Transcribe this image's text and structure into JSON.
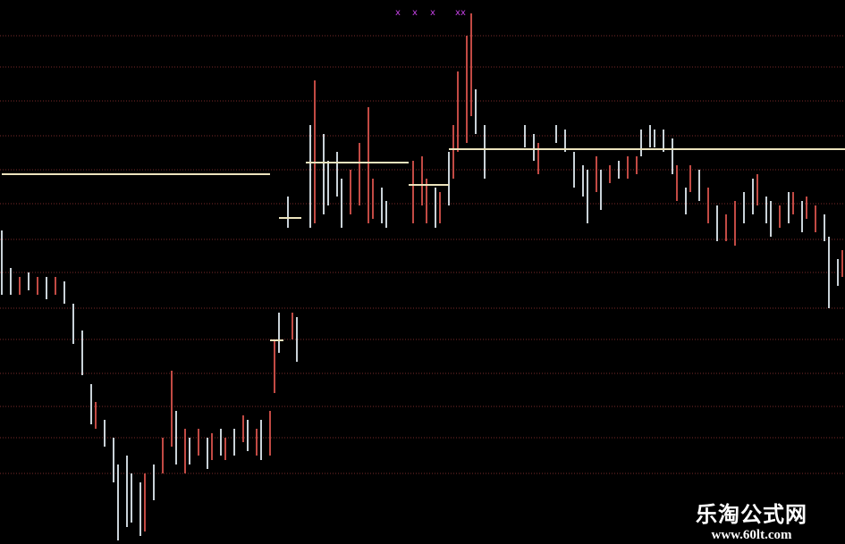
{
  "chart_data": {
    "type": "ohlc",
    "title": "",
    "xlabel": "",
    "ylabel": "",
    "xlim": [
      0,
      189
    ],
    "ylim": [
      0,
      61
    ],
    "grid": true,
    "colors": {
      "up": "#c24a44",
      "down": "#c9d2d8",
      "level": "#ece3bd",
      "grid": "#7a2a2a",
      "marker": "#c040e0",
      "background": "#000000"
    },
    "bars": [
      [
        0,
        35.2,
        28,
        "d"
      ],
      [
        2,
        31,
        28,
        "d"
      ],
      [
        4,
        30,
        28,
        "u"
      ],
      [
        6,
        30.5,
        28.5,
        "d"
      ],
      [
        8,
        30,
        28,
        "u"
      ],
      [
        10,
        30,
        27.5,
        "d"
      ],
      [
        12,
        30,
        28,
        "u"
      ],
      [
        14,
        29.5,
        27,
        "d"
      ],
      [
        16,
        27,
        22.5,
        "d"
      ],
      [
        18,
        24,
        19,
        "d"
      ],
      [
        20,
        18,
        13.5,
        "d"
      ],
      [
        21,
        16,
        13,
        "u"
      ],
      [
        23,
        14,
        11,
        "d"
      ],
      [
        25,
        12,
        7,
        "d"
      ],
      [
        26,
        9,
        0.5,
        "d"
      ],
      [
        28,
        10,
        2,
        "d"
      ],
      [
        29,
        8,
        2.5,
        "d"
      ],
      [
        31,
        7,
        1,
        "d"
      ],
      [
        32,
        8,
        1.5,
        "u"
      ],
      [
        34,
        9,
        5,
        "d"
      ],
      [
        36,
        12,
        8,
        "u"
      ],
      [
        38,
        19.5,
        11,
        "u"
      ],
      [
        39,
        15,
        9,
        "d"
      ],
      [
        41,
        13,
        8,
        "u"
      ],
      [
        42,
        12,
        9,
        "d"
      ],
      [
        44,
        13,
        10,
        "u"
      ],
      [
        46,
        12,
        8.5,
        "d"
      ],
      [
        47,
        12.5,
        9.5,
        "u"
      ],
      [
        49,
        13,
        10,
        "d"
      ],
      [
        50,
        12,
        9.5,
        "u"
      ],
      [
        52,
        13,
        10,
        "d"
      ],
      [
        54,
        14.5,
        11.5,
        "u"
      ],
      [
        55,
        14,
        10.5,
        "d"
      ],
      [
        57,
        13,
        10,
        "u"
      ],
      [
        58,
        14,
        9.5,
        "d"
      ],
      [
        60,
        15,
        10,
        "u"
      ],
      [
        61,
        23,
        17,
        "u"
      ],
      [
        62,
        26,
        21.5,
        "d"
      ],
      [
        64,
        39,
        35.5,
        "d"
      ],
      [
        65,
        26,
        23,
        "u"
      ],
      [
        66,
        25.5,
        20.5,
        "d"
      ],
      [
        69,
        47,
        35.5,
        "d"
      ],
      [
        70,
        52,
        36,
        "u"
      ],
      [
        72,
        46,
        37,
        "d"
      ],
      [
        73,
        43,
        38,
        "d"
      ],
      [
        75,
        44,
        39,
        "d"
      ],
      [
        76,
        41,
        35.5,
        "d"
      ],
      [
        78,
        42,
        37,
        "u"
      ],
      [
        80,
        45,
        38,
        "u"
      ],
      [
        82,
        49,
        36,
        "u"
      ],
      [
        83,
        41,
        36.5,
        "u"
      ],
      [
        85,
        40,
        36,
        "d"
      ],
      [
        86,
        38.5,
        35.5,
        "d"
      ],
      [
        92,
        43,
        36,
        "u"
      ],
      [
        94,
        43.5,
        38,
        "u"
      ],
      [
        95,
        41,
        36,
        "u"
      ],
      [
        97,
        40,
        35.5,
        "d"
      ],
      [
        98,
        39.5,
        36,
        "u"
      ],
      [
        100,
        44,
        38,
        "d"
      ],
      [
        101,
        47,
        41,
        "u"
      ],
      [
        102,
        53,
        44,
        "u"
      ],
      [
        104,
        57,
        45,
        "u"
      ],
      [
        105,
        59.5,
        48,
        "u"
      ],
      [
        106,
        51,
        46,
        "d"
      ],
      [
        108,
        47,
        41,
        "d"
      ],
      [
        117,
        47,
        44.5,
        "d"
      ],
      [
        119,
        46,
        43,
        "d"
      ],
      [
        120,
        45,
        41.5,
        "u"
      ],
      [
        124,
        47,
        45,
        "d"
      ],
      [
        126,
        46.5,
        44,
        "d"
      ],
      [
        128,
        44,
        40,
        "d"
      ],
      [
        130,
        42.5,
        39,
        "d"
      ],
      [
        131,
        42,
        36,
        "d"
      ],
      [
        133,
        43.5,
        39.5,
        "u"
      ],
      [
        134,
        42,
        37.5,
        "d"
      ],
      [
        136,
        42.5,
        40.5,
        "u"
      ],
      [
        138,
        43,
        41,
        "d"
      ],
      [
        140,
        43.5,
        41,
        "u"
      ],
      [
        142,
        43.5,
        41.5,
        "u"
      ],
      [
        143,
        46.5,
        43.5,
        "d"
      ],
      [
        145,
        47,
        44.5,
        "d"
      ],
      [
        146,
        46.5,
        44.5,
        "d"
      ],
      [
        148,
        46.5,
        44,
        "d"
      ],
      [
        150,
        45.5,
        41.5,
        "d"
      ],
      [
        151,
        42.5,
        38.5,
        "u"
      ],
      [
        153,
        40,
        37,
        "d"
      ],
      [
        154,
        42.5,
        39.5,
        "u"
      ],
      [
        156,
        42,
        38.5,
        "d"
      ],
      [
        158,
        40,
        36,
        "u"
      ],
      [
        160,
        38,
        34,
        "d"
      ],
      [
        162,
        37,
        34,
        "u"
      ],
      [
        164,
        38.5,
        33.5,
        "u"
      ],
      [
        166,
        39.5,
        36,
        "d"
      ],
      [
        168,
        41,
        37,
        "d"
      ],
      [
        169,
        41.5,
        38,
        "u"
      ],
      [
        171,
        39,
        36,
        "d"
      ],
      [
        172,
        38.5,
        34.5,
        "d"
      ],
      [
        174,
        38,
        35.5,
        "u"
      ],
      [
        176,
        39.5,
        36,
        "d"
      ],
      [
        177,
        39.5,
        37,
        "u"
      ],
      [
        179,
        38.5,
        35,
        "d"
      ],
      [
        180,
        39,
        36.5,
        "u"
      ],
      [
        182,
        38,
        35,
        "u"
      ],
      [
        184,
        37,
        34,
        "d"
      ],
      [
        185,
        34.5,
        26.5,
        "d"
      ],
      [
        187,
        32,
        29,
        "d"
      ],
      [
        188,
        33,
        30,
        "u"
      ]
    ],
    "levels": [
      {
        "from": 0,
        "to": 60,
        "value": 41.5
      },
      {
        "from": 60,
        "to": 63,
        "value": 22.9
      },
      {
        "from": 62,
        "to": 67,
        "value": 36.6
      },
      {
        "from": 68,
        "to": 91,
        "value": 42.8
      },
      {
        "from": 91,
        "to": 100,
        "value": 40.3
      },
      {
        "from": 100,
        "to": 189,
        "value": 44.3
      }
    ],
    "gridlines": [
      57,
      53.5,
      49.7,
      45.8,
      42,
      38.2,
      34.2,
      30.5,
      26.5,
      23,
      19.2,
      15.5,
      12,
      8
    ],
    "markers": [
      {
        "bar": 88.6,
        "value": 59.7
      },
      {
        "bar": 92.4,
        "value": 59.7
      },
      {
        "bar": 96.4,
        "value": 59.7
      },
      {
        "bar": 102,
        "value": 59.7
      },
      {
        "bar": 103.2,
        "value": 59.7
      }
    ],
    "marker_symbol": "x"
  },
  "watermark": {
    "name": "乐淘公式网",
    "url": "www.60lt.com"
  }
}
